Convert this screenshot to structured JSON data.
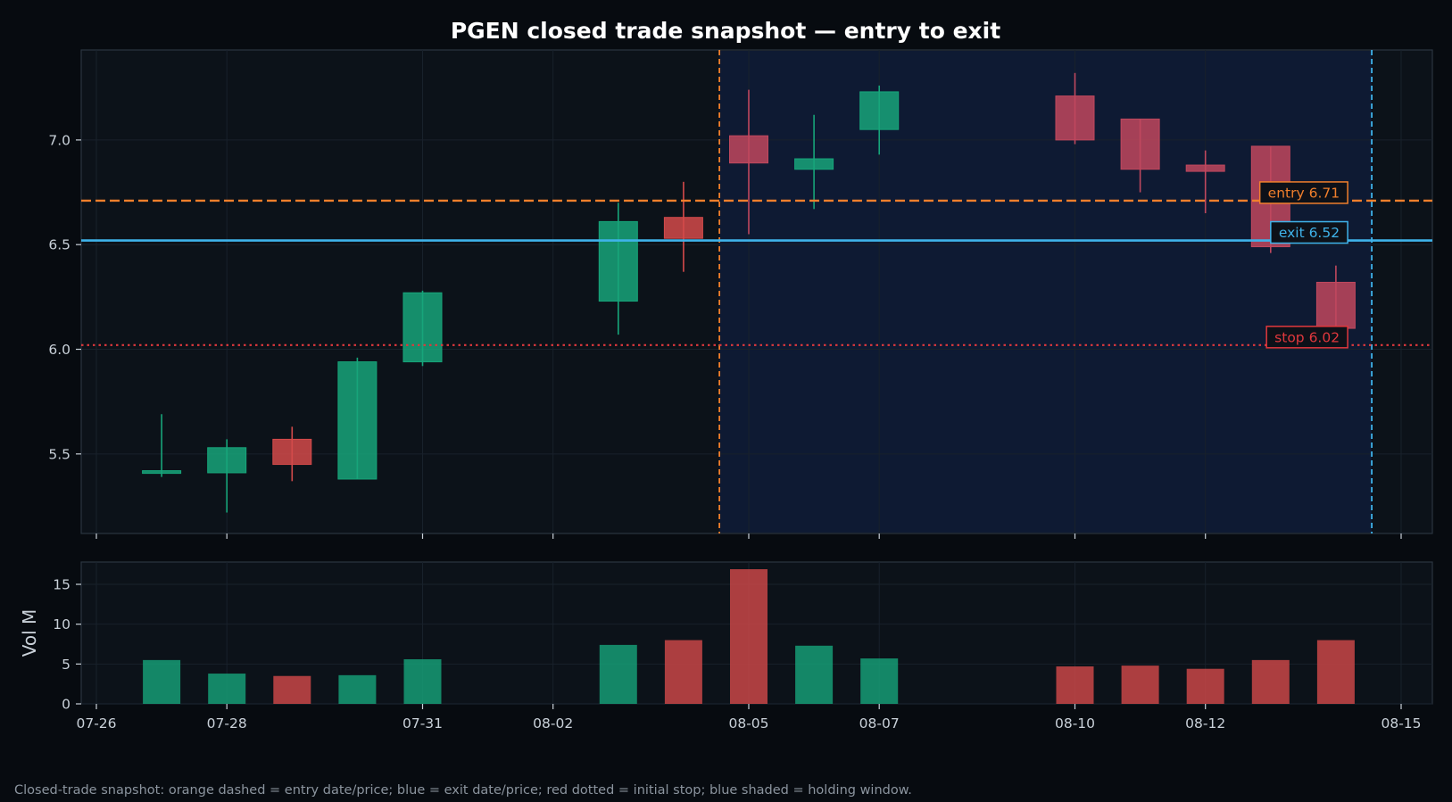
{
  "title": "PGEN closed trade snapshot — entry to exit",
  "footer": "Closed-trade snapshot: orange dashed = entry date/price; blue = exit date/price; red dotted = initial stop; blue shaded = holding window.",
  "colors": {
    "background": "#070b10",
    "panel": "#0c1219",
    "holding_window": "#0e1a33",
    "up": "#17a57a",
    "down": "#d44a4a",
    "down_in_window": "#c0485e",
    "entry": "#f07f2c",
    "exit": "#3fb3ea",
    "stop": "#e0383d",
    "grid": "#18212b",
    "axis_text": "#c9d1d9"
  },
  "chart_data": [
    {
      "type": "candlestick",
      "title": "PGEN closed trade snapshot — entry to exit",
      "ylim": [
        5.12,
        7.43
      ],
      "y_ticks": [
        5.5,
        6.0,
        6.5,
        7.0
      ],
      "y_tick_labels": [
        "5.5",
        "6.0",
        "6.5",
        "7.0"
      ],
      "grid": true,
      "candles": [
        {
          "date": "07-27",
          "open": 5.41,
          "high": 5.69,
          "low": 5.39,
          "close": 5.42
        },
        {
          "date": "07-28",
          "open": 5.41,
          "high": 5.57,
          "low": 5.22,
          "close": 5.53
        },
        {
          "date": "07-29",
          "open": 5.57,
          "high": 5.63,
          "low": 5.37,
          "close": 5.45
        },
        {
          "date": "07-30",
          "open": 5.38,
          "high": 5.96,
          "low": 5.38,
          "close": 5.94
        },
        {
          "date": "07-31",
          "open": 5.94,
          "high": 6.28,
          "low": 5.92,
          "close": 6.27
        },
        {
          "date": "08-03",
          "open": 6.23,
          "high": 6.7,
          "low": 6.07,
          "close": 6.61
        },
        {
          "date": "08-04",
          "open": 6.63,
          "high": 6.8,
          "low": 6.37,
          "close": 6.53
        },
        {
          "date": "08-05",
          "open": 7.02,
          "high": 7.24,
          "low": 6.55,
          "close": 6.89
        },
        {
          "date": "08-06",
          "open": 6.86,
          "high": 7.12,
          "low": 6.67,
          "close": 6.91
        },
        {
          "date": "08-07",
          "open": 7.05,
          "high": 7.26,
          "low": 6.93,
          "close": 7.23
        },
        {
          "date": "08-10",
          "open": 7.21,
          "high": 7.32,
          "low": 6.98,
          "close": 7.0
        },
        {
          "date": "08-11",
          "open": 7.1,
          "high": 7.1,
          "low": 6.75,
          "close": 6.86
        },
        {
          "date": "08-12",
          "open": 6.88,
          "high": 6.95,
          "low": 6.65,
          "close": 6.85
        },
        {
          "date": "08-13",
          "open": 6.97,
          "high": 6.97,
          "low": 6.46,
          "close": 6.49
        },
        {
          "date": "08-14",
          "open": 6.32,
          "high": 6.4,
          "low": 6.1,
          "close": 6.1
        }
      ],
      "entry": {
        "date": "08-04",
        "price": 6.71,
        "label": "entry 6.71"
      },
      "exit": {
        "date": "08-14",
        "price": 6.52,
        "label": "exit 6.52"
      },
      "stop": {
        "price": 6.02,
        "label": "stop 6.02"
      },
      "holding_window": {
        "start": "08-04",
        "end": "08-14"
      }
    },
    {
      "type": "bar",
      "ylabel": "Vol M",
      "ylim": [
        0,
        17.8
      ],
      "y_ticks": [
        0,
        5,
        10,
        15
      ],
      "y_tick_labels": [
        "0",
        "5",
        "10",
        "15"
      ],
      "x_tick_labels": [
        "07-26",
        "07-28",
        "07-31",
        "08-02",
        "08-05",
        "08-07",
        "08-10",
        "08-12",
        "08-15"
      ],
      "grid": true,
      "bars": [
        {
          "date": "07-27",
          "value": 5.5,
          "dir": "up"
        },
        {
          "date": "07-28",
          "value": 3.8,
          "dir": "up"
        },
        {
          "date": "07-29",
          "value": 3.5,
          "dir": "down"
        },
        {
          "date": "07-30",
          "value": 3.6,
          "dir": "up"
        },
        {
          "date": "07-31",
          "value": 5.6,
          "dir": "up"
        },
        {
          "date": "08-03",
          "value": 7.4,
          "dir": "up"
        },
        {
          "date": "08-04",
          "value": 8.0,
          "dir": "down"
        },
        {
          "date": "08-05",
          "value": 16.9,
          "dir": "down"
        },
        {
          "date": "08-06",
          "value": 7.3,
          "dir": "up"
        },
        {
          "date": "08-07",
          "value": 5.7,
          "dir": "up"
        },
        {
          "date": "08-10",
          "value": 4.7,
          "dir": "down"
        },
        {
          "date": "08-11",
          "value": 4.8,
          "dir": "down"
        },
        {
          "date": "08-12",
          "value": 4.4,
          "dir": "down"
        },
        {
          "date": "08-13",
          "value": 5.5,
          "dir": "down"
        },
        {
          "date": "08-14",
          "value": 8.0,
          "dir": "down"
        }
      ]
    }
  ]
}
